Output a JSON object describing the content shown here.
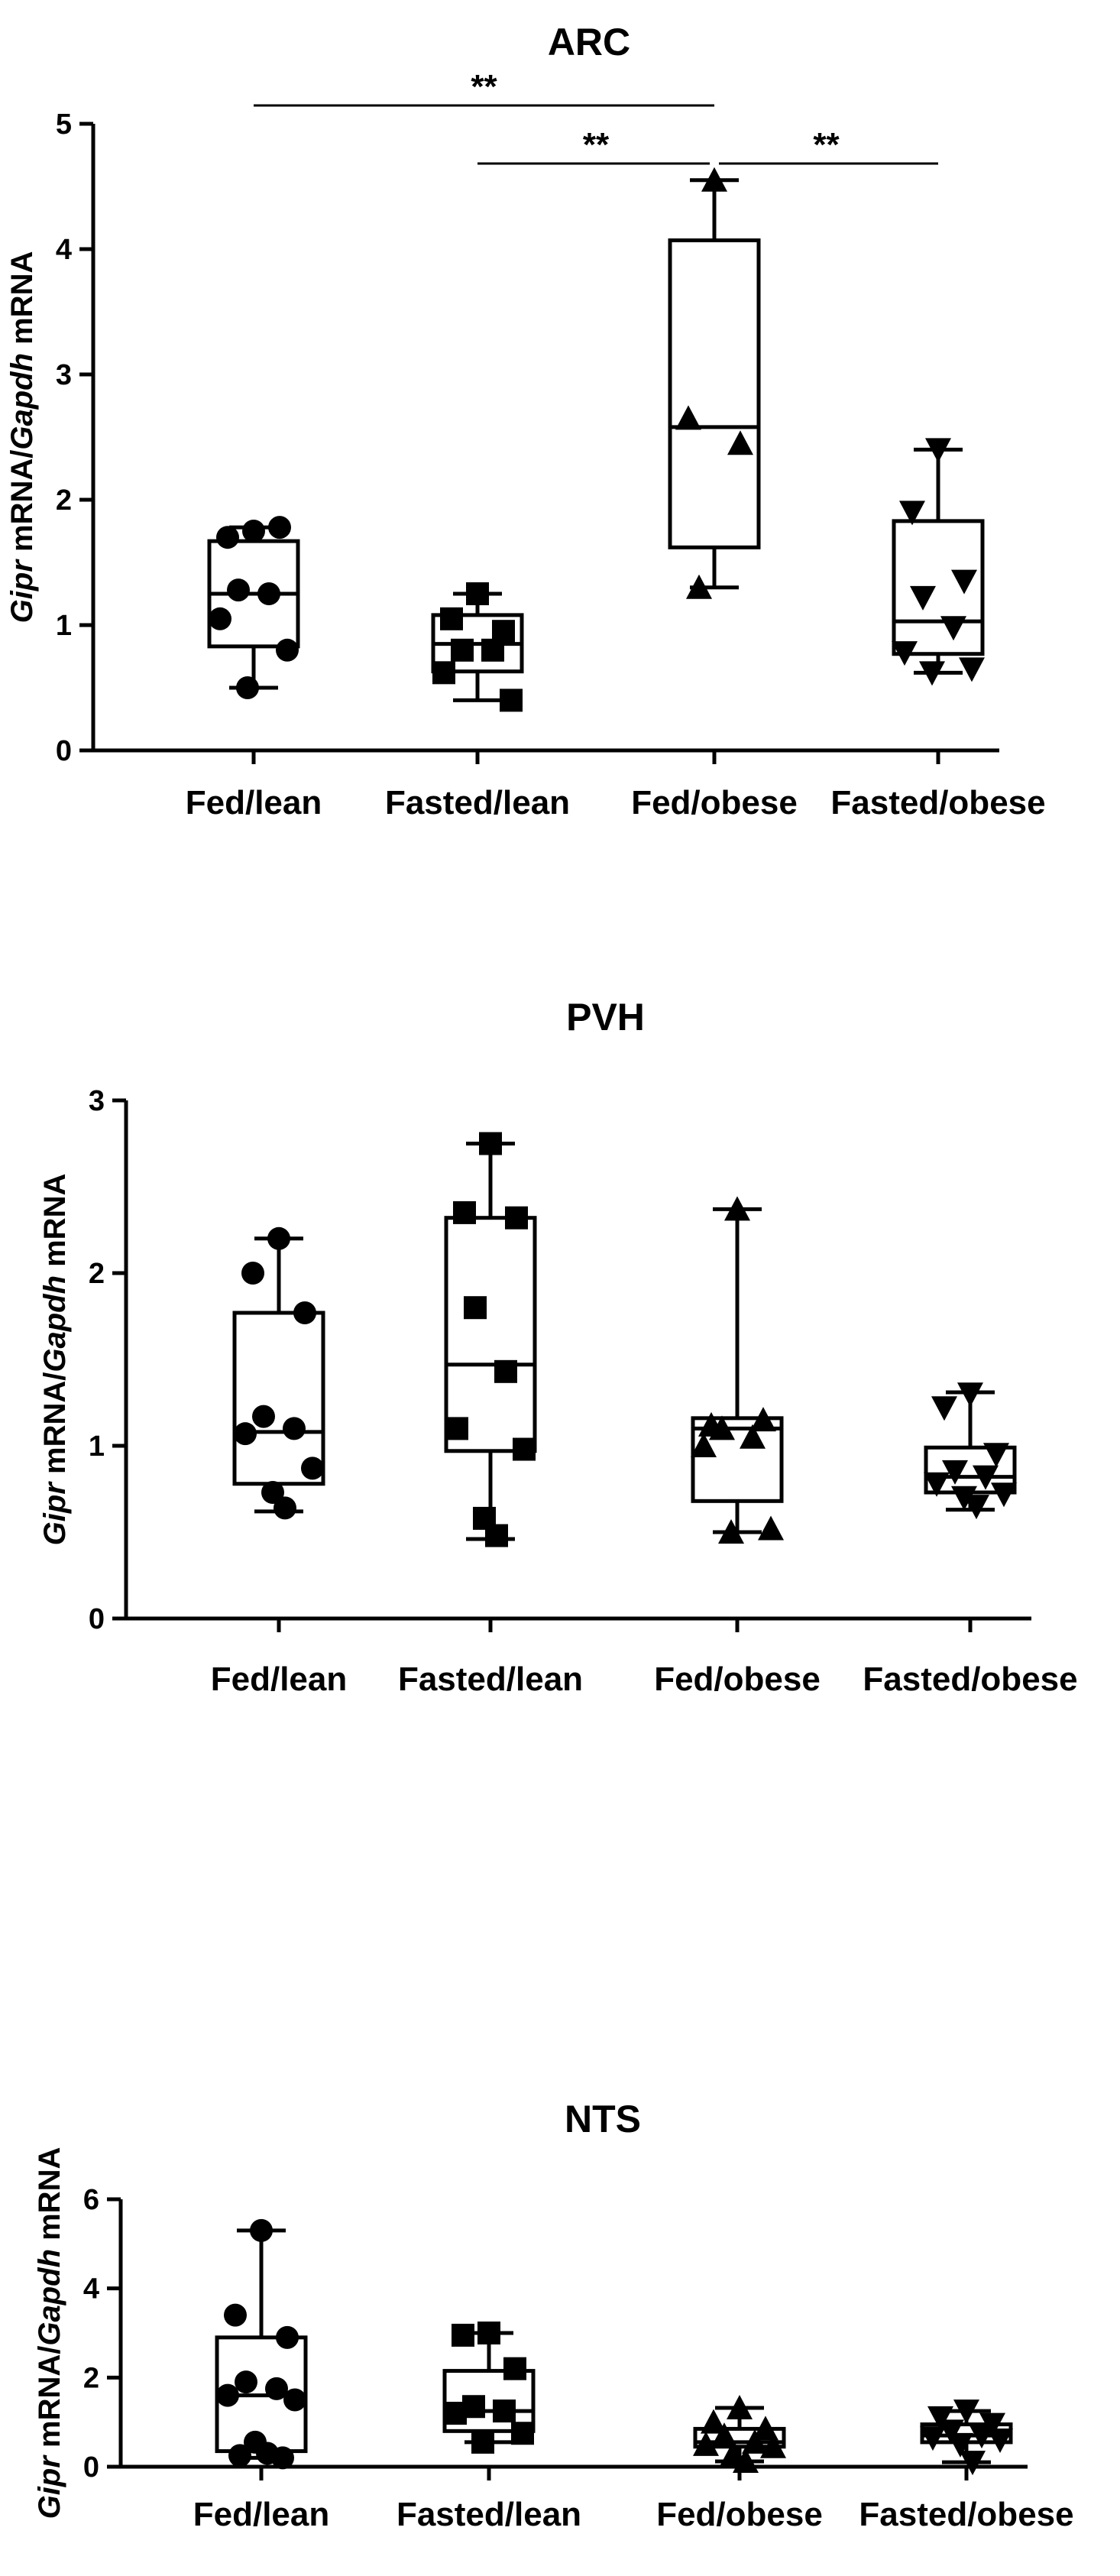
{
  "chart_data": [
    {
      "type": "box",
      "title": "ARC",
      "ylabel_parts": [
        {
          "text": "Gipr",
          "italic": true
        },
        {
          "text": " mRNA/",
          "italic": false
        },
        {
          "text": "Gapdh",
          "italic": true
        },
        {
          "text": " mRNA",
          "italic": false
        }
      ],
      "ylim": [
        0,
        5
      ],
      "yticks": [
        0,
        1,
        2,
        3,
        4,
        5
      ],
      "categories": [
        "Fed/lean",
        "Fasted/lean",
        "Fed/obese",
        "Fasted/obese"
      ],
      "markers": [
        "circle",
        "square",
        "triangle-up",
        "triangle-down"
      ],
      "boxes": [
        {
          "min": 0.5,
          "q1": 0.83,
          "median": 1.25,
          "q3": 1.67,
          "max": 1.78
        },
        {
          "min": 0.4,
          "q1": 0.63,
          "median": 0.85,
          "q3": 1.08,
          "max": 1.25
        },
        {
          "min": 1.3,
          "q1": 1.62,
          "median": 2.58,
          "q3": 4.07,
          "max": 4.55
        },
        {
          "min": 0.62,
          "q1": 0.77,
          "median": 1.03,
          "q3": 1.83,
          "max": 2.4
        }
      ],
      "points": [
        [
          1.75,
          1.7,
          1.78,
          1.28,
          1.25,
          1.05,
          0.8,
          0.5
        ],
        [
          1.25,
          1.05,
          0.95,
          0.8,
          0.8,
          0.62,
          0.4
        ],
        [
          4.55,
          2.65,
          2.45,
          1.3
        ],
        [
          2.4,
          1.9,
          1.35,
          1.22,
          0.98,
          0.78,
          0.65,
          0.62
        ]
      ],
      "significance": [
        {
          "from": 0,
          "to": 2,
          "label": "**"
        },
        {
          "from": 1,
          "to": 2,
          "label": "**"
        },
        {
          "from": 2,
          "to": 3,
          "label": "**"
        }
      ]
    },
    {
      "type": "box",
      "title": "PVH",
      "ylabel_parts": [
        {
          "text": "Gipr",
          "italic": true
        },
        {
          "text": " mRNA/",
          "italic": false
        },
        {
          "text": "Gapdh",
          "italic": true
        },
        {
          "text": " mRNA",
          "italic": false
        }
      ],
      "ylim": [
        0,
        3
      ],
      "yticks": [
        0,
        1,
        2,
        3
      ],
      "categories": [
        "Fed/lean",
        "Fasted/lean",
        "Fed/obese",
        "Fasted/obese"
      ],
      "markers": [
        "circle",
        "square",
        "triangle-up",
        "triangle-down"
      ],
      "boxes": [
        {
          "min": 0.62,
          "q1": 0.78,
          "median": 1.08,
          "q3": 1.77,
          "max": 2.2
        },
        {
          "min": 0.46,
          "q1": 0.97,
          "median": 1.47,
          "q3": 2.32,
          "max": 2.75
        },
        {
          "min": 0.5,
          "q1": 0.68,
          "median": 1.1,
          "q3": 1.16,
          "max": 2.37
        },
        {
          "min": 0.63,
          "q1": 0.73,
          "median": 0.82,
          "q3": 0.99,
          "max": 1.31
        }
      ],
      "points": [
        [
          2.2,
          2.0,
          1.77,
          1.17,
          1.1,
          1.07,
          0.87,
          0.73,
          0.64
        ],
        [
          2.75,
          2.35,
          2.32,
          1.8,
          1.43,
          1.1,
          0.98,
          0.58,
          0.48
        ],
        [
          2.37,
          1.12,
          1.15,
          1.1,
          1.05,
          1.0,
          0.52,
          0.5
        ],
        [
          1.3,
          1.22,
          0.95,
          0.85,
          0.82,
          0.78,
          0.72,
          0.7,
          0.65
        ]
      ],
      "significance": []
    },
    {
      "type": "box",
      "title": "NTS",
      "ylabel_parts": [
        {
          "text": "Gipr",
          "italic": true
        },
        {
          "text": " mRNA/",
          "italic": false
        },
        {
          "text": "Gapdh",
          "italic": true
        },
        {
          "text": " mRNA",
          "italic": false
        }
      ],
      "ylim": [
        0,
        6
      ],
      "yticks": [
        0,
        2,
        4,
        6
      ],
      "categories": [
        "Fed/lean",
        "Fasted/lean",
        "Fed/obese",
        "Fasted/obese"
      ],
      "markers": [
        "circle",
        "square",
        "triangle-up",
        "triangle-down"
      ],
      "boxes": [
        {
          "min": 0.2,
          "q1": 0.35,
          "median": 1.6,
          "q3": 2.9,
          "max": 5.3
        },
        {
          "min": 0.55,
          "q1": 0.8,
          "median": 1.25,
          "q3": 2.15,
          "max": 3.0
        },
        {
          "min": 0.12,
          "q1": 0.45,
          "median": 0.55,
          "q3": 0.85,
          "max": 1.32
        },
        {
          "min": 0.1,
          "q1": 0.55,
          "median": 0.7,
          "q3": 0.95,
          "max": 1.25
        }
      ],
      "points": [
        [
          5.3,
          3.4,
          2.9,
          1.9,
          1.75,
          1.6,
          1.5,
          0.55,
          0.3,
          0.25,
          0.2
        ],
        [
          3.0,
          2.95,
          2.2,
          1.35,
          1.25,
          1.2,
          0.75,
          0.55
        ],
        [
          1.32,
          1.0,
          0.85,
          0.7,
          0.55,
          0.5,
          0.45,
          0.3,
          0.12
        ],
        [
          1.25,
          1.1,
          0.95,
          0.8,
          0.7,
          0.65,
          0.6,
          0.5,
          0.1
        ]
      ],
      "significance": []
    }
  ]
}
